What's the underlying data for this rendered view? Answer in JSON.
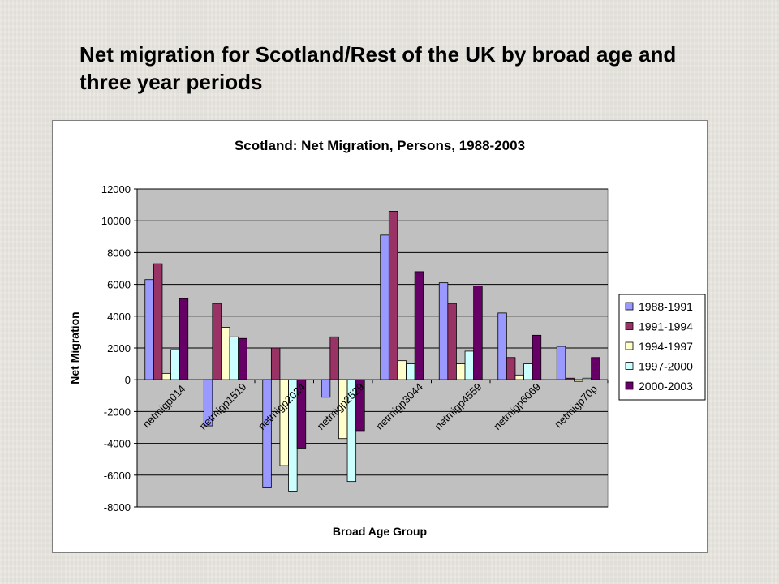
{
  "slide": {
    "title": "Net migration for Scotland/Rest of the UK by broad age and three year periods"
  },
  "chart_data": {
    "type": "bar",
    "title": "Scotland: Net Migration, Persons, 1988-2003",
    "xlabel": "Broad Age Group",
    "ylabel": "Net Migration",
    "ylim": [
      -8000,
      12000
    ],
    "yticks": [
      12000,
      10000,
      8000,
      6000,
      4000,
      2000,
      0,
      -2000,
      -4000,
      -6000,
      -8000
    ],
    "grid": true,
    "legend_position": "right",
    "plot_background": "#c0c0c0",
    "categories": [
      "netmigp014",
      "netmigp1519",
      "netmigp2024",
      "netmigp2529",
      "netmigp3044",
      "netmigp4559",
      "netmigp6069",
      "netmigp70p"
    ],
    "series": [
      {
        "name": "1988-1991",
        "color": "#9999ff",
        "values": [
          6300,
          -2900,
          -6800,
          -1100,
          9100,
          6100,
          4200,
          2100
        ]
      },
      {
        "name": "1991-1994",
        "color": "#993366",
        "values": [
          7300,
          4800,
          2000,
          2700,
          10600,
          4800,
          1400,
          100
        ]
      },
      {
        "name": "1994-1997",
        "color": "#ffffcc",
        "values": [
          400,
          3300,
          -5400,
          -3700,
          1200,
          1000,
          300,
          -100
        ]
      },
      {
        "name": "1997-2000",
        "color": "#ccffff",
        "values": [
          1900,
          2700,
          -7000,
          -6400,
          1000,
          1800,
          1000,
          100
        ]
      },
      {
        "name": "2000-2003",
        "color": "#660066",
        "values": [
          5100,
          2600,
          -4300,
          -3200,
          6800,
          5900,
          2800,
          1400
        ]
      }
    ]
  }
}
